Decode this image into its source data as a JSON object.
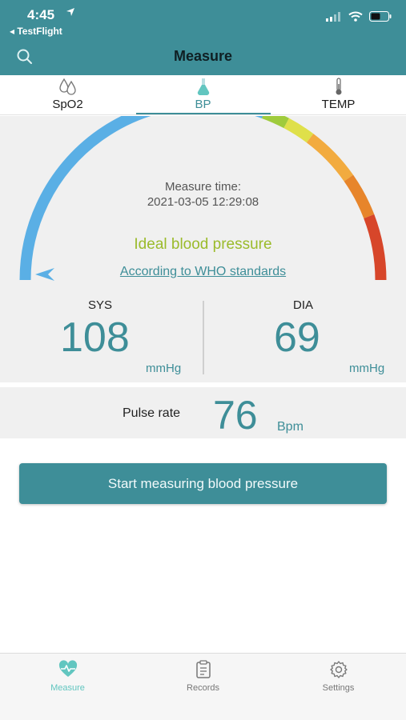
{
  "status_bar": {
    "time": "4:45",
    "location_icon": "location-arrow-icon",
    "back_app": "◂ TestFlight",
    "icons": [
      "signal-icon",
      "wifi-icon",
      "battery-icon"
    ]
  },
  "nav": {
    "title": "Measure",
    "search_icon": "search-icon"
  },
  "tabs": [
    {
      "label": "SpO2",
      "icon": "droplets-icon",
      "active": false
    },
    {
      "label": "BP",
      "icon": "flask-icon",
      "active": true
    },
    {
      "label": "TEMP",
      "icon": "thermometer-icon",
      "active": false
    }
  ],
  "gauge": {
    "measure_time_label": "Measure time:",
    "measure_time_value": "2021-03-05 12:29:08",
    "result": "Ideal blood pressure",
    "standard_link": "According to WHO standards",
    "segment_colors": [
      "#5aafe5",
      "#9fcb3c",
      "#dfe04a",
      "#f2ab3f",
      "#e7852b",
      "#d7462a"
    ],
    "pointer_color": "#5aafe5"
  },
  "readings": {
    "sys": {
      "label": "SYS",
      "value": "108",
      "unit": "mmHg"
    },
    "dia": {
      "label": "DIA",
      "value": "69",
      "unit": "mmHg"
    }
  },
  "pulse": {
    "label": "Pulse rate",
    "value": "76",
    "unit": "Bpm"
  },
  "actions": {
    "start_button": "Start measuring blood pressure"
  },
  "bottom_nav": [
    {
      "label": "Measure",
      "icon": "heart-pulse-icon",
      "active": true
    },
    {
      "label": "Records",
      "icon": "clipboard-icon",
      "active": false
    },
    {
      "label": "Settings",
      "icon": "gear-icon",
      "active": false
    }
  ],
  "colors": {
    "primary": "#3e8e98",
    "accent": "#62c6c0",
    "result_green": "#9bbb2b"
  }
}
